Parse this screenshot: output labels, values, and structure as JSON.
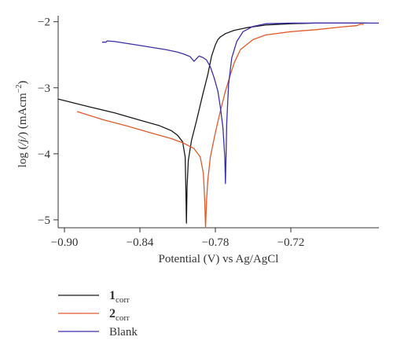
{
  "chart_data": {
    "type": "line",
    "xlabel": "Potential (V) vs Ag/AgCl",
    "ylabel": "log (/j/) (mAcm−2)",
    "ylabel_parts": {
      "pre": "log (",
      "italic": "/j/",
      "post": ") (mAcm",
      "sup": "−2",
      "close": ")"
    },
    "xlim": [
      -0.905,
      -0.65
    ],
    "ylim": [
      -5.12,
      -1.98
    ],
    "x_ticks": [
      -0.9,
      -0.84,
      -0.78,
      -0.72
    ],
    "x_tick_labels": [
      "−0.90",
      "−0.84",
      "−0.78",
      "−0.72"
    ],
    "y_ticks": [
      -2,
      -3,
      -4,
      -5
    ],
    "y_tick_labels": [
      "−2",
      "−3",
      "−4",
      "−5"
    ],
    "grid": false,
    "legend_position": "bottom-left-below",
    "series": [
      {
        "name": "1corr",
        "legend_main": "1",
        "legend_sub": "corr",
        "color": "#1a1a1a",
        "x": [
          -0.905,
          -0.88,
          -0.86,
          -0.84,
          -0.825,
          -0.815,
          -0.81,
          -0.806,
          -0.804,
          -0.8035,
          -0.803,
          -0.8025,
          -0.8015,
          -0.799,
          -0.795,
          -0.79,
          -0.786,
          -0.783,
          -0.78,
          -0.778,
          -0.776,
          -0.772,
          -0.765,
          -0.755,
          -0.74,
          -0.72,
          -0.7,
          -0.66
        ],
        "y": [
          -3.17,
          -3.29,
          -3.38,
          -3.49,
          -3.57,
          -3.65,
          -3.72,
          -3.82,
          -4.05,
          -4.5,
          -5.05,
          -4.5,
          -4.1,
          -3.8,
          -3.5,
          -3.1,
          -2.8,
          -2.52,
          -2.35,
          -2.27,
          -2.23,
          -2.18,
          -2.13,
          -2.09,
          -2.05,
          -2.03,
          -2.02,
          -2.02
        ]
      },
      {
        "name": "2corr",
        "legend_main": "2",
        "legend_sub": "corr",
        "color": "#e05a2a",
        "x": [
          -0.89,
          -0.87,
          -0.85,
          -0.83,
          -0.815,
          -0.805,
          -0.797,
          -0.792,
          -0.7895,
          -0.7885,
          -0.7878,
          -0.787,
          -0.786,
          -0.784,
          -0.78,
          -0.776,
          -0.772,
          -0.768,
          -0.765,
          -0.76,
          -0.75,
          -0.74,
          -0.72,
          -0.7,
          -0.68,
          -0.668,
          -0.665,
          -0.662
        ],
        "y": [
          -3.36,
          -3.48,
          -3.58,
          -3.69,
          -3.77,
          -3.84,
          -3.92,
          -4.05,
          -4.3,
          -4.7,
          -5.12,
          -4.7,
          -4.4,
          -4.05,
          -3.68,
          -3.35,
          -3.05,
          -2.8,
          -2.62,
          -2.42,
          -2.27,
          -2.2,
          -2.15,
          -2.12,
          -2.08,
          -2.06,
          -2.04,
          -2.04
        ]
      },
      {
        "name": "Blank",
        "legend_main": "Blank",
        "legend_sub": "",
        "color": "#3a2fa8",
        "x": [
          -0.87,
          -0.867,
          -0.866,
          -0.86,
          -0.85,
          -0.84,
          -0.83,
          -0.82,
          -0.81,
          -0.805,
          -0.8,
          -0.797,
          -0.795,
          -0.793,
          -0.79,
          -0.787,
          -0.784,
          -0.781,
          -0.778,
          -0.776,
          -0.774,
          -0.7725,
          -0.772,
          -0.7715,
          -0.771,
          -0.7695,
          -0.767,
          -0.763,
          -0.758,
          -0.75,
          -0.74,
          -0.72,
          -0.7,
          -0.67,
          -0.65
        ],
        "y": [
          -2.31,
          -2.31,
          -2.29,
          -2.3,
          -2.33,
          -2.36,
          -2.39,
          -2.42,
          -2.46,
          -2.49,
          -2.53,
          -2.6,
          -2.56,
          -2.52,
          -2.54,
          -2.58,
          -2.68,
          -2.85,
          -3.05,
          -3.3,
          -3.6,
          -4.05,
          -4.45,
          -4.05,
          -3.55,
          -2.95,
          -2.55,
          -2.3,
          -2.15,
          -2.07,
          -2.03,
          -2.02,
          -2.02,
          -2.02,
          -2.02
        ]
      }
    ]
  }
}
